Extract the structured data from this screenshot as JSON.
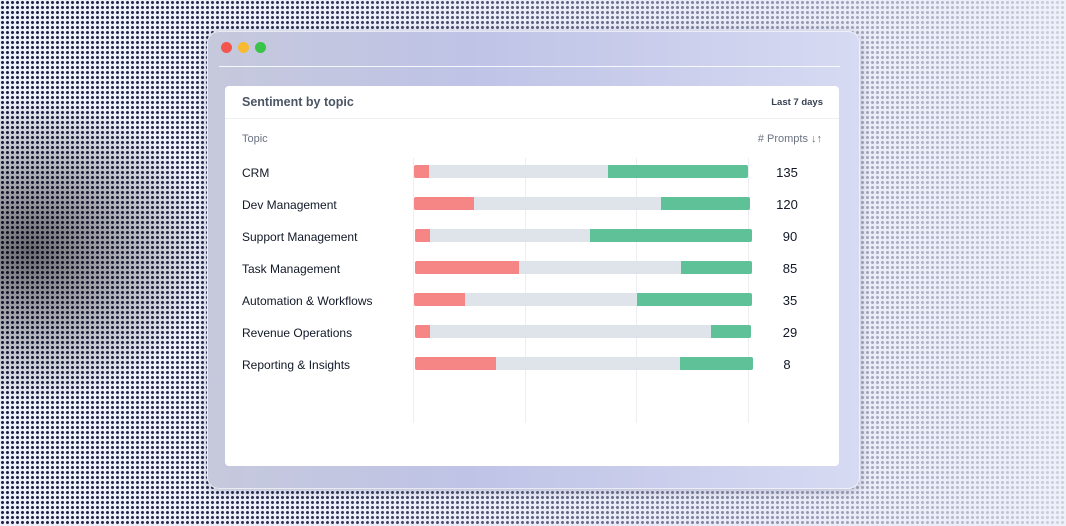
{
  "colors": {
    "negative": "#f68585",
    "neutral": "#dfe3ea",
    "positive": "#5ec198"
  },
  "card": {
    "title": "Sentiment by topic",
    "range": "Last 7 days",
    "columns": {
      "topic": "Topic",
      "prompts": "# Prompts ↓↑"
    }
  },
  "rows": [
    {
      "topic": "CRM",
      "prompts": "135",
      "negative": 0.045,
      "positive": 0.42
    },
    {
      "topic": "Dev Management",
      "prompts": "120",
      "negative": 0.18,
      "positive": 0.265
    },
    {
      "topic": "Support Management",
      "prompts": "90",
      "negative": 0.045,
      "positive": 0.48
    },
    {
      "topic": "Task Management",
      "prompts": "85",
      "negative": 0.31,
      "positive": 0.21
    },
    {
      "topic": "Automation & Workflows",
      "prompts": "35",
      "negative": 0.15,
      "positive": 0.34
    },
    {
      "topic": "Revenue Operations",
      "prompts": "29",
      "negative": 0.045,
      "positive": 0.12
    },
    {
      "topic": "Reporting & Insights",
      "prompts": "8",
      "negative": 0.24,
      "positive": 0.215
    }
  ]
}
